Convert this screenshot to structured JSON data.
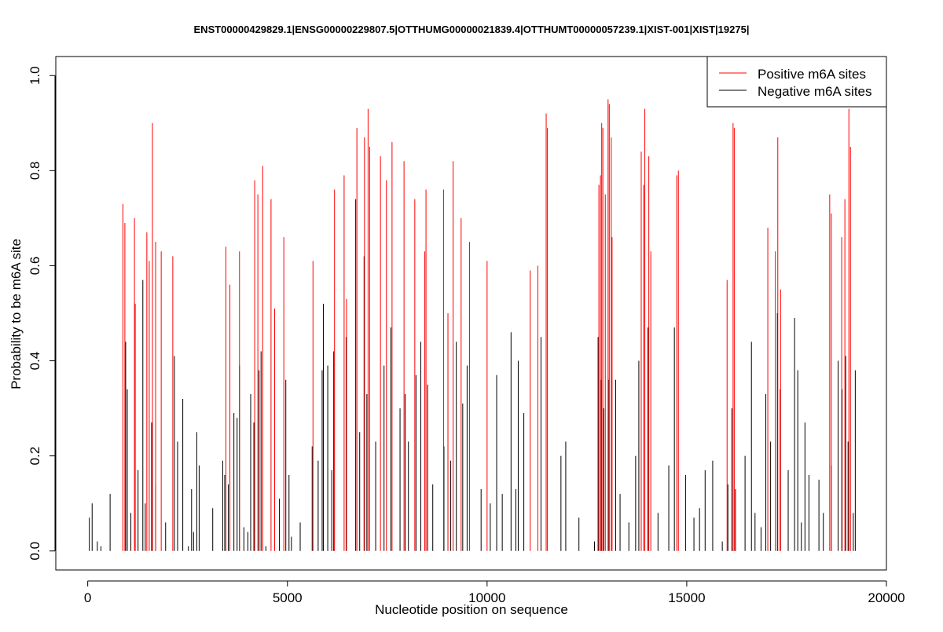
{
  "chart_data": {
    "type": "bar",
    "title": "ENST00000429829.1|ENSG00000229807.5|OTTHUMG00000021839.4|OTTHUMT00000057239.1|XIST-001|XIST|19275|",
    "xlabel": "Nucleotide position on sequence",
    "ylabel": "Probability to be m6A site",
    "xlim": [
      -800,
      20000
    ],
    "ylim": [
      -0.04,
      1.04
    ],
    "x_ticks": [
      0,
      5000,
      10000,
      15000,
      20000
    ],
    "y_ticks": [
      0.0,
      0.2,
      0.4,
      0.6,
      0.8,
      1.0
    ],
    "x_tick_labels": [
      "0",
      "5000",
      "10000",
      "15000",
      "20000"
    ],
    "y_tick_labels": [
      "0.0",
      "0.2",
      "0.4",
      "0.6",
      "0.8",
      "1.0"
    ],
    "legend_position": "top-right",
    "grid": false,
    "series": [
      {
        "name": "Positive m6A sites",
        "color": "#ff0000",
        "points": [
          [
            880,
            0.73
          ],
          [
            930,
            0.69
          ],
          [
            1170,
            0.7
          ],
          [
            1190,
            0.52
          ],
          [
            1480,
            0.67
          ],
          [
            1540,
            0.61
          ],
          [
            1620,
            0.9
          ],
          [
            1700,
            0.65
          ],
          [
            1840,
            0.63
          ],
          [
            2130,
            0.62
          ],
          [
            3460,
            0.64
          ],
          [
            3560,
            0.56
          ],
          [
            3800,
            0.63
          ],
          [
            4180,
            0.78
          ],
          [
            4260,
            0.75
          ],
          [
            4380,
            0.81
          ],
          [
            4590,
            0.74
          ],
          [
            4680,
            0.51
          ],
          [
            4910,
            0.66
          ],
          [
            5640,
            0.61
          ],
          [
            6180,
            0.76
          ],
          [
            6420,
            0.79
          ],
          [
            6480,
            0.53
          ],
          [
            6740,
            0.89
          ],
          [
            6930,
            0.87
          ],
          [
            7020,
            0.93
          ],
          [
            7060,
            0.85
          ],
          [
            7330,
            0.83
          ],
          [
            7480,
            0.78
          ],
          [
            7620,
            0.86
          ],
          [
            7920,
            0.82
          ],
          [
            8190,
            0.74
          ],
          [
            8440,
            0.63
          ],
          [
            8470,
            0.76
          ],
          [
            8910,
            0.76
          ],
          [
            9020,
            0.5
          ],
          [
            9150,
            0.82
          ],
          [
            9350,
            0.7
          ],
          [
            9560,
            0.65
          ],
          [
            10000,
            0.61
          ],
          [
            11080,
            0.59
          ],
          [
            11270,
            0.6
          ],
          [
            11480,
            0.92
          ],
          [
            11510,
            0.89
          ],
          [
            12800,
            0.77
          ],
          [
            12840,
            0.79
          ],
          [
            12870,
            0.9
          ],
          [
            12900,
            0.89
          ],
          [
            12960,
            0.75
          ],
          [
            13030,
            0.95
          ],
          [
            13060,
            0.94
          ],
          [
            13110,
            0.87
          ],
          [
            13130,
            0.66
          ],
          [
            13860,
            0.84
          ],
          [
            13920,
            0.77
          ],
          [
            13950,
            0.93
          ],
          [
            14050,
            0.83
          ],
          [
            14100,
            0.63
          ],
          [
            14750,
            0.79
          ],
          [
            14790,
            0.8
          ],
          [
            16010,
            0.57
          ],
          [
            16160,
            0.9
          ],
          [
            16190,
            0.89
          ],
          [
            17030,
            0.68
          ],
          [
            17220,
            0.63
          ],
          [
            17280,
            0.87
          ],
          [
            17350,
            0.55
          ],
          [
            18580,
            0.75
          ],
          [
            18620,
            0.71
          ],
          [
            18880,
            0.66
          ],
          [
            18960,
            0.74
          ],
          [
            19060,
            0.93
          ],
          [
            19100,
            0.85
          ]
        ]
      },
      {
        "name": "Negative m6A sites",
        "color": "#000000",
        "points": [
          [
            40,
            0.07
          ],
          [
            110,
            0.1
          ],
          [
            240,
            0.02
          ],
          [
            330,
            0.01
          ],
          [
            560,
            0.12
          ],
          [
            950,
            0.44
          ],
          [
            990,
            0.34
          ],
          [
            1080,
            0.08
          ],
          [
            1260,
            0.17
          ],
          [
            1380,
            0.57
          ],
          [
            1440,
            0.1
          ],
          [
            1600,
            0.27
          ],
          [
            1700,
            0.14
          ],
          [
            1950,
            0.06
          ],
          [
            2170,
            0.41
          ],
          [
            2250,
            0.23
          ],
          [
            2380,
            0.32
          ],
          [
            2520,
            0.01
          ],
          [
            2600,
            0.13
          ],
          [
            2650,
            0.04
          ],
          [
            2730,
            0.25
          ],
          [
            2790,
            0.18
          ],
          [
            3130,
            0.09
          ],
          [
            3380,
            0.19
          ],
          [
            3430,
            0.16
          ],
          [
            3520,
            0.14
          ],
          [
            3660,
            0.29
          ],
          [
            3740,
            0.28
          ],
          [
            3800,
            0.39
          ],
          [
            3910,
            0.05
          ],
          [
            4010,
            0.04
          ],
          [
            4080,
            0.33
          ],
          [
            4160,
            0.27
          ],
          [
            4290,
            0.38
          ],
          [
            4340,
            0.42
          ],
          [
            4460,
            0.01
          ],
          [
            4800,
            0.11
          ],
          [
            4960,
            0.36
          ],
          [
            5040,
            0.16
          ],
          [
            5100,
            0.03
          ],
          [
            5320,
            0.06
          ],
          [
            5620,
            0.22
          ],
          [
            5770,
            0.19
          ],
          [
            5870,
            0.38
          ],
          [
            5900,
            0.52
          ],
          [
            6010,
            0.39
          ],
          [
            6110,
            0.17
          ],
          [
            6160,
            0.42
          ],
          [
            6470,
            0.45
          ],
          [
            6710,
            0.74
          ],
          [
            6810,
            0.25
          ],
          [
            6920,
            0.62
          ],
          [
            6990,
            0.33
          ],
          [
            7210,
            0.23
          ],
          [
            7420,
            0.39
          ],
          [
            7590,
            0.47
          ],
          [
            7820,
            0.3
          ],
          [
            7950,
            0.33
          ],
          [
            8030,
            0.23
          ],
          [
            8220,
            0.37
          ],
          [
            8340,
            0.44
          ],
          [
            8510,
            0.35
          ],
          [
            8640,
            0.14
          ],
          [
            8920,
            0.22
          ],
          [
            9090,
            0.19
          ],
          [
            9230,
            0.44
          ],
          [
            9390,
            0.31
          ],
          [
            9500,
            0.39
          ],
          [
            9850,
            0.13
          ],
          [
            10080,
            0.1
          ],
          [
            10240,
            0.37
          ],
          [
            10380,
            0.12
          ],
          [
            10600,
            0.46
          ],
          [
            10720,
            0.13
          ],
          [
            10780,
            0.4
          ],
          [
            10920,
            0.29
          ],
          [
            11350,
            0.45
          ],
          [
            11850,
            0.2
          ],
          [
            11970,
            0.23
          ],
          [
            12300,
            0.07
          ],
          [
            12690,
            0.02
          ],
          [
            12780,
            0.45
          ],
          [
            12860,
            0.36
          ],
          [
            12920,
            0.3
          ],
          [
            13040,
            0.36
          ],
          [
            13220,
            0.36
          ],
          [
            13330,
            0.12
          ],
          [
            13550,
            0.06
          ],
          [
            13720,
            0.2
          ],
          [
            13800,
            0.4
          ],
          [
            14030,
            0.47
          ],
          [
            14280,
            0.08
          ],
          [
            14550,
            0.18
          ],
          [
            14690,
            0.47
          ],
          [
            14970,
            0.16
          ],
          [
            15180,
            0.07
          ],
          [
            15320,
            0.09
          ],
          [
            15460,
            0.17
          ],
          [
            15650,
            0.19
          ],
          [
            15890,
            0.02
          ],
          [
            16030,
            0.14
          ],
          [
            16130,
            0.3
          ],
          [
            16220,
            0.13
          ],
          [
            16460,
            0.2
          ],
          [
            16620,
            0.44
          ],
          [
            16710,
            0.08
          ],
          [
            16860,
            0.05
          ],
          [
            16980,
            0.33
          ],
          [
            17100,
            0.23
          ],
          [
            17270,
            0.5
          ],
          [
            17340,
            0.34
          ],
          [
            17540,
            0.17
          ],
          [
            17700,
            0.49
          ],
          [
            17780,
            0.38
          ],
          [
            17870,
            0.06
          ],
          [
            17960,
            0.27
          ],
          [
            18060,
            0.16
          ],
          [
            18310,
            0.15
          ],
          [
            18420,
            0.08
          ],
          [
            18620,
            0.18
          ],
          [
            18790,
            0.4
          ],
          [
            18890,
            0.34
          ],
          [
            18980,
            0.41
          ],
          [
            19040,
            0.23
          ],
          [
            19170,
            0.08
          ],
          [
            19220,
            0.38
          ]
        ]
      }
    ]
  }
}
